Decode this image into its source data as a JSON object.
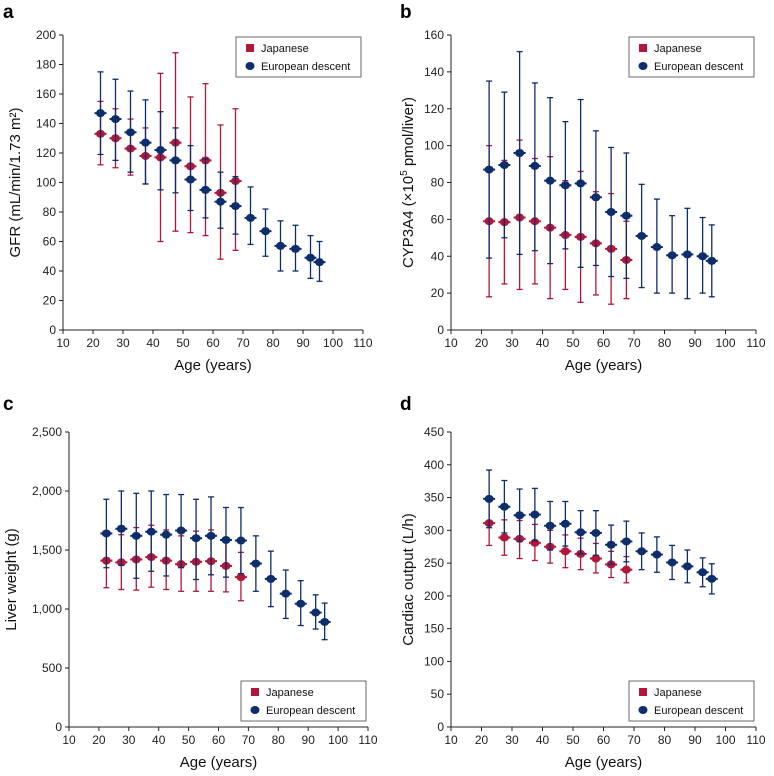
{
  "colors": {
    "japanese": "#b0173a",
    "european": "#0d2d6b",
    "axis": "#222222"
  },
  "legend": {
    "japanese": "Japanese",
    "european": "European descent"
  },
  "chart_data": [
    {
      "type": "scatter",
      "panel_label": "a",
      "xlabel": "Age (years)",
      "ylabel": "GFR (mL/min/1.73 m²)",
      "xlim": [
        10,
        110
      ],
      "ylim": [
        0,
        200
      ],
      "xticks": [
        10,
        20,
        30,
        40,
        50,
        60,
        70,
        80,
        90,
        100,
        110
      ],
      "yticks": [
        0,
        20,
        40,
        60,
        80,
        100,
        120,
        140,
        160,
        180,
        200
      ],
      "ytick_labels": [
        "0",
        "20",
        "40",
        "60",
        "80",
        "100",
        "120",
        "140",
        "160",
        "180",
        "200"
      ],
      "legend_position": "top-right",
      "series": [
        {
          "name": "Japanese",
          "x": [
            22.5,
            27.5,
            32.5,
            37.5,
            42.5,
            47.5,
            52.5,
            57.5,
            62.5,
            67.5
          ],
          "y": [
            133,
            130,
            123,
            118,
            117,
            127,
            111,
            115,
            93,
            101
          ],
          "lower": [
            112,
            110,
            105,
            99,
            60,
            67,
            66,
            64,
            48,
            54
          ],
          "upper": [
            155,
            150,
            143,
            137,
            174,
            188,
            158,
            167,
            139,
            150
          ]
        },
        {
          "name": "European descent",
          "x": [
            22.5,
            27.5,
            32.5,
            37.5,
            42.5,
            47.5,
            52.5,
            57.5,
            62.5,
            67.5,
            72.5,
            77.5,
            82.5,
            87.5,
            92.5,
            95.5
          ],
          "y": [
            147,
            143,
            134,
            127,
            122,
            115,
            102,
            95,
            87,
            84,
            76,
            67,
            57,
            55,
            49,
            46
          ],
          "lower": [
            119,
            115,
            107,
            99,
            95,
            93,
            81,
            76,
            69,
            65,
            58,
            50,
            40,
            40,
            35,
            33
          ],
          "upper": [
            175,
            170,
            162,
            156,
            148,
            137,
            125,
            116,
            107,
            104,
            97,
            82,
            74,
            71,
            64,
            60
          ]
        }
      ]
    },
    {
      "type": "scatter",
      "panel_label": "b",
      "xlabel": "Age (years)",
      "ylabel_main": "CYP3A4 (×10",
      "ylabel_sup": "5",
      "ylabel_end": " pmol/liver)",
      "xlim": [
        10,
        110
      ],
      "ylim": [
        0,
        160
      ],
      "xticks": [
        10,
        20,
        30,
        40,
        50,
        60,
        70,
        80,
        90,
        100,
        110
      ],
      "yticks": [
        0,
        20,
        40,
        60,
        80,
        100,
        120,
        140,
        160
      ],
      "ytick_labels": [
        "0",
        "20",
        "40",
        "60",
        "80",
        "100",
        "120",
        "140",
        "160"
      ],
      "legend_position": "top-right",
      "series": [
        {
          "name": "Japanese",
          "x": [
            22.5,
            27.5,
            32.5,
            37.5,
            42.5,
            47.5,
            52.5,
            57.5,
            62.5,
            67.5
          ],
          "y": [
            59,
            58.5,
            61,
            59,
            55.5,
            51.5,
            50.5,
            47,
            44,
            38
          ],
          "lower": [
            18,
            25,
            22,
            25,
            17,
            22,
            15,
            19,
            14,
            17
          ],
          "upper": [
            100,
            92,
            103,
            93,
            94,
            81,
            86,
            75,
            74,
            59
          ]
        },
        {
          "name": "European descent",
          "x": [
            22.5,
            27.5,
            32.5,
            37.5,
            42.5,
            47.5,
            52.5,
            57.5,
            62.5,
            67.5,
            72.5,
            77.5,
            82.5,
            87.5,
            92.5,
            95.5
          ],
          "y": [
            87,
            89.5,
            96,
            89,
            81,
            78.5,
            79.5,
            72,
            64,
            62,
            51,
            45,
            40.5,
            41,
            40,
            37.5
          ],
          "lower": [
            39,
            50,
            41,
            43,
            36,
            44,
            34,
            35,
            29,
            28,
            23,
            20,
            20,
            17,
            20,
            18
          ],
          "upper": [
            135,
            129,
            151,
            134,
            126,
            113,
            125,
            108,
            99,
            96,
            79,
            71,
            62,
            66,
            61,
            57
          ]
        }
      ]
    },
    {
      "type": "scatter",
      "panel_label": "c",
      "xlabel": "Age (years)",
      "ylabel": "Liver weight (g)",
      "xlim": [
        10,
        110
      ],
      "ylim": [
        0,
        2500
      ],
      "xticks": [
        10,
        20,
        30,
        40,
        50,
        60,
        70,
        80,
        90,
        100,
        110
      ],
      "yticks": [
        0,
        500,
        1000,
        1500,
        2000,
        2500
      ],
      "ytick_labels": [
        "0",
        "500",
        "1,000",
        "1,500",
        "2,000",
        "2,500"
      ],
      "legend_position": "bottom-right",
      "series": [
        {
          "name": "Japanese",
          "x": [
            22.5,
            27.5,
            32.5,
            37.5,
            42.5,
            47.5,
            52.5,
            57.5,
            62.5,
            67.5
          ],
          "y": [
            1410,
            1395,
            1420,
            1440,
            1410,
            1380,
            1400,
            1405,
            1365,
            1270
          ],
          "lower": [
            1180,
            1165,
            1160,
            1185,
            1165,
            1150,
            1150,
            1150,
            1145,
            1070
          ],
          "upper": [
            1640,
            1630,
            1690,
            1710,
            1670,
            1620,
            1660,
            1670,
            1600,
            1480
          ]
        },
        {
          "name": "European descent",
          "x": [
            22.5,
            27.5,
            32.5,
            37.5,
            42.5,
            47.5,
            52.5,
            57.5,
            62.5,
            67.5,
            72.5,
            77.5,
            82.5,
            87.5,
            92.5,
            95.5
          ],
          "y": [
            1640,
            1680,
            1620,
            1655,
            1630,
            1665,
            1600,
            1620,
            1585,
            1580,
            1385,
            1255,
            1130,
            1045,
            970,
            890
          ],
          "lower": [
            1350,
            1370,
            1260,
            1320,
            1280,
            1350,
            1250,
            1290,
            1270,
            1300,
            1150,
            1020,
            920,
            860,
            830,
            740
          ],
          "upper": [
            1930,
            2000,
            1980,
            2000,
            1970,
            1970,
            1930,
            1950,
            1860,
            1860,
            1620,
            1490,
            1330,
            1240,
            1120,
            1050
          ]
        }
      ]
    },
    {
      "type": "scatter",
      "panel_label": "d",
      "xlabel": "Age (years)",
      "ylabel": "Cardiac output (L/h)",
      "xlim": [
        10,
        110
      ],
      "ylim": [
        0,
        450
      ],
      "xticks": [
        10,
        20,
        30,
        40,
        50,
        60,
        70,
        80,
        90,
        100,
        110
      ],
      "yticks": [
        0,
        50,
        100,
        150,
        200,
        250,
        300,
        350,
        400,
        450
      ],
      "ytick_labels": [
        "0",
        "50",
        "100",
        "150",
        "200",
        "250",
        "300",
        "350",
        "400",
        "450"
      ],
      "legend_position": "bottom-right",
      "series": [
        {
          "name": "Japanese",
          "x": [
            22.5,
            27.5,
            32.5,
            37.5,
            42.5,
            47.5,
            52.5,
            57.5,
            62.5,
            67.5
          ],
          "y": [
            311,
            289,
            287,
            281,
            275,
            268,
            264,
            257,
            248,
            240
          ],
          "lower": [
            277,
            262,
            257,
            254,
            250,
            243,
            240,
            235,
            228,
            220
          ],
          "upper": [
            345,
            316,
            315,
            309,
            300,
            293,
            288,
            280,
            268,
            260
          ]
        },
        {
          "name": "European descent",
          "x": [
            22.5,
            27.5,
            32.5,
            37.5,
            42.5,
            47.5,
            52.5,
            57.5,
            62.5,
            67.5,
            72.5,
            77.5,
            82.5,
            87.5,
            92.5,
            95.5
          ],
          "y": [
            348,
            336,
            323,
            324,
            307,
            310,
            297,
            296,
            278,
            283,
            268,
            263,
            251,
            245,
            236,
            226
          ],
          "lower": [
            304,
            296,
            283,
            284,
            270,
            276,
            264,
            262,
            248,
            252,
            240,
            236,
            225,
            220,
            214,
            203
          ],
          "upper": [
            392,
            376,
            363,
            364,
            344,
            344,
            330,
            330,
            308,
            314,
            296,
            290,
            277,
            270,
            258,
            249
          ]
        }
      ]
    }
  ]
}
